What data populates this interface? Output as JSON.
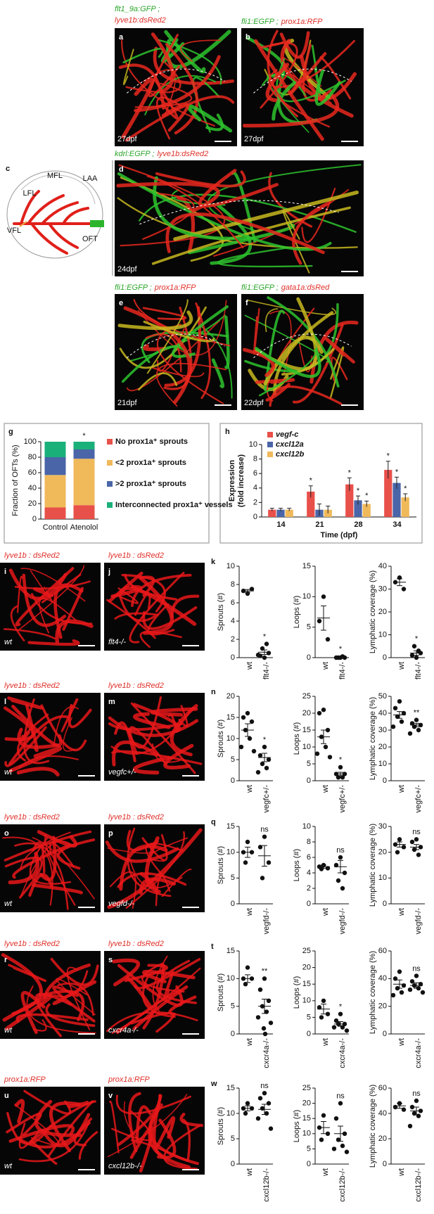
{
  "panels": [
    {
      "letter": "a",
      "label_green": "flt1_9a:GFP ;",
      "label_red": "lyve1b:dsRed2",
      "stage": "27dpf"
    },
    {
      "letter": "b",
      "label_green": "fli1:EGFP ;",
      "label_red": "prox1a:RFP",
      "stage": "27dpf"
    },
    {
      "letter": "c",
      "labels": [
        "MFL",
        "LAA",
        "LFL",
        "VFL",
        "OFT"
      ]
    },
    {
      "letter": "d",
      "label_green": "kdrl:EGFP ;",
      "label_red": "lyve1b:dsRed2",
      "stage": "24dpf"
    },
    {
      "letter": "e",
      "label_green": "fli1:EGFP ;",
      "label_red": "prox1a:RFP",
      "stage": "21dpf"
    },
    {
      "letter": "f",
      "label_green": "fli1:EGFP ;",
      "label_red": "gata1a:dsRed",
      "stage": "22dpf"
    },
    {
      "letter": "i",
      "label_red": "lyve1b : dsRed2",
      "genotype": "wt"
    },
    {
      "letter": "j",
      "label_red": "lyve1b : dsRed2",
      "genotype": "flt4-/-"
    },
    {
      "letter": "l",
      "label_red": "lyve1b : dsRed2",
      "genotype": "wt"
    },
    {
      "letter": "m",
      "label_red": "lyve1b : dsRed2",
      "genotype": "vegfc+/-"
    },
    {
      "letter": "o",
      "label_red": "lyve1b : dsRed2",
      "genotype": "wt"
    },
    {
      "letter": "p",
      "label_red": "lyve1b : dsRed2",
      "genotype": "vegfd-/-"
    },
    {
      "letter": "r",
      "label_red": "lyve1b : dsRed2",
      "genotype": "wt"
    },
    {
      "letter": "s",
      "label_red": "lyve1b : dsRed2",
      "genotype": "cxcr4a-/-"
    },
    {
      "letter": "u",
      "label_red": "prox1a:RFP",
      "genotype": "wt"
    },
    {
      "letter": "v",
      "label_red": "prox1a:RFP",
      "genotype": "cxcl12b-/-"
    }
  ],
  "chart_data": [
    {
      "type": "stacked",
      "panel": "g",
      "ylabel": "Fraction of OFTs (%)",
      "categories": [
        "Control",
        "Atenolol"
      ],
      "ylim": [
        0,
        100
      ],
      "yticks": [
        0,
        20,
        40,
        60,
        80,
        100
      ],
      "annotation": "*",
      "series": [
        {
          "name": "No prox1a⁺ sprouts",
          "color": "#e8504a",
          "values": [
            15,
            18
          ]
        },
        {
          "name": "<2 prox1a⁺ sprouts",
          "color": "#f0b95a",
          "values": [
            42,
            60
          ]
        },
        {
          "name": ">2 prox1a⁺ sprouts",
          "color": "#4a65a8",
          "values": [
            23,
            12
          ]
        },
        {
          "name": "Interconnected prox1a⁺ vessels",
          "color": "#1ab07a",
          "values": [
            20,
            10
          ]
        }
      ]
    },
    {
      "type": "grouped",
      "panel": "h",
      "ylabel": [
        "Expression",
        "(fold increase)"
      ],
      "xlabel": "Time (dpf)",
      "categories": [
        "14",
        "21",
        "28",
        "34"
      ],
      "ylim": [
        0,
        10
      ],
      "yticks": [
        0,
        2,
        4,
        6,
        8,
        10
      ],
      "series": [
        {
          "name": "vegf-c",
          "color": "#e8504a",
          "values": [
            1,
            3.5,
            4.5,
            6.5
          ],
          "errors": [
            0.2,
            0.8,
            0.9,
            1.2
          ],
          "annotations": [
            null,
            "*",
            "*",
            "*"
          ]
        },
        {
          "name": "cxcl12a",
          "color": "#4a65a8",
          "values": [
            1,
            1,
            2.3,
            4.7
          ],
          "errors": [
            0.2,
            0.8,
            0.6,
            0.8
          ],
          "annotations": [
            null,
            null,
            "*",
            "*"
          ]
        },
        {
          "name": "cxcl12b",
          "color": "#f0b95a",
          "values": [
            1,
            1,
            1.8,
            2.7
          ],
          "errors": [
            0.2,
            0.5,
            0.4,
            0.5
          ],
          "annotations": [
            null,
            null,
            "*",
            "*"
          ]
        }
      ]
    },
    {
      "type": "dot",
      "panel": "k",
      "ylabel": "Sprouts (#)",
      "ylim": [
        0,
        10
      ],
      "yticks": [
        0,
        2,
        4,
        6,
        8,
        10
      ],
      "categories": [
        "wt",
        "flt4-/-"
      ],
      "points": [
        [
          7,
          7.3,
          7.5
        ],
        [
          0,
          0.2,
          0.5,
          1,
          1.5,
          0.3
        ]
      ],
      "means": [
        7.3,
        0.6
      ],
      "sems": [
        0.15,
        0.25
      ],
      "annotation": "*"
    },
    {
      "type": "dot",
      "ylabel": "Loops (#)",
      "ylim": [
        0,
        15
      ],
      "yticks": [
        0,
        5,
        10,
        15
      ],
      "categories": [
        "wt",
        "flt4-/-"
      ],
      "points": [
        [
          10,
          6,
          3
        ],
        [
          0,
          0,
          0,
          0,
          0.2
        ]
      ],
      "means": [
        6.5,
        0.05
      ],
      "sems": [
        2,
        0.05
      ],
      "annotation": "*"
    },
    {
      "type": "dot",
      "ylabel": "Lymphatic coverage (%)",
      "ylim": [
        0,
        40
      ],
      "yticks": [
        0,
        10,
        20,
        30,
        40
      ],
      "categories": [
        "wt",
        "flt4-/-"
      ],
      "points": [
        [
          35,
          33,
          30
        ],
        [
          0,
          1,
          2,
          5,
          3
        ]
      ],
      "means": [
        33,
        2
      ],
      "sems": [
        1.5,
        1
      ],
      "annotation": "*"
    },
    {
      "type": "dot",
      "panel": "n",
      "ylabel": "Sprouts (#)",
      "ylim": [
        0,
        20
      ],
      "yticks": [
        0,
        5,
        10,
        15,
        20
      ],
      "categories": [
        "wt",
        "vegfc+/-"
      ],
      "points": [
        [
          16,
          15,
          14,
          12,
          10,
          8,
          7
        ],
        [
          8,
          6,
          5,
          4,
          3,
          2
        ]
      ],
      "means": [
        12,
        5.5
      ],
      "sems": [
        1.5,
        1
      ],
      "annotation": "*"
    },
    {
      "type": "dot",
      "ylabel": "Loops (#)",
      "ylim": [
        0,
        25
      ],
      "yticks": [
        0,
        5,
        10,
        15,
        20,
        25
      ],
      "categories": [
        "wt",
        "vegfc+/-"
      ],
      "points": [
        [
          21,
          20,
          15,
          13,
          10,
          8,
          7
        ],
        [
          4,
          2,
          2,
          1,
          1
        ]
      ],
      "means": [
        13,
        2
      ],
      "sems": [
        2,
        0.5
      ],
      "annotation": "*"
    },
    {
      "type": "dot",
      "ylabel": "Lymphatic coverage (%)",
      "ylim": [
        0,
        50
      ],
      "yticks": [
        0,
        10,
        20,
        30,
        40,
        50
      ],
      "categories": [
        "wt",
        "vegfc+/-"
      ],
      "points": [
        [
          47,
          43,
          40,
          38,
          35,
          32
        ],
        [
          36,
          34,
          33,
          32,
          30,
          28
        ]
      ],
      "means": [
        39,
        33
      ],
      "sems": [
        2,
        1
      ],
      "annotation": "**"
    },
    {
      "type": "dot",
      "panel": "q",
      "ylabel": "Sprouts (#)",
      "ylim": [
        0,
        15
      ],
      "yticks": [
        0,
        5,
        10,
        15
      ],
      "categories": [
        "wt",
        "vegfd-/-"
      ],
      "points": [
        [
          12,
          10,
          10,
          8
        ],
        [
          13,
          11,
          8,
          5
        ]
      ],
      "means": [
        10,
        9.3
      ],
      "sems": [
        1,
        2
      ],
      "annotation": "ns"
    },
    {
      "type": "dot",
      "ylabel": "Loops (#)",
      "ylim": [
        0,
        10
      ],
      "yticks": [
        0,
        2,
        4,
        6,
        8,
        10
      ],
      "categories": [
        "wt",
        "vegfd-/-"
      ],
      "points": [
        [
          5,
          4.8,
          4.6,
          4.5
        ],
        [
          6,
          5,
          4,
          3,
          2
        ]
      ],
      "means": [
        4.8,
        4.8
      ],
      "sems": [
        0.2,
        0.8
      ],
      "annotation": "ns"
    },
    {
      "type": "dot",
      "ylabel": "Lymphatic coverage (%)",
      "ylim": [
        0,
        30
      ],
      "yticks": [
        0,
        10,
        20,
        30
      ],
      "categories": [
        "wt",
        "vegfd-/-"
      ],
      "points": [
        [
          25,
          23,
          22,
          20
        ],
        [
          25,
          24,
          22,
          21,
          19
        ]
      ],
      "means": [
        23,
        22
      ],
      "sems": [
        1,
        1
      ],
      "annotation": "ns"
    },
    {
      "type": "dot",
      "panel": "t",
      "ylabel": "Sprouts (#)",
      "ylim": [
        0,
        15
      ],
      "yticks": [
        0,
        5,
        10,
        15
      ],
      "categories": [
        "wt",
        "cxcr4a-/-"
      ],
      "points": [
        [
          12,
          10,
          10,
          9
        ],
        [
          10,
          8,
          6,
          5,
          4,
          3,
          2,
          1,
          0
        ]
      ],
      "means": [
        10,
        5
      ],
      "sems": [
        0.7,
        1.3
      ],
      "annotation": "**"
    },
    {
      "type": "dot",
      "ylabel": "Loops (#)",
      "ylim": [
        0,
        25
      ],
      "yticks": [
        0,
        5,
        10,
        15,
        20,
        25
      ],
      "categories": [
        "wt",
        "cxcr4a-/-"
      ],
      "points": [
        [
          10,
          8,
          6,
          5
        ],
        [
          6,
          4,
          3,
          3,
          2,
          2,
          1
        ]
      ],
      "means": [
        7.5,
        3
      ],
      "sems": [
        1.5,
        0.7
      ],
      "annotation": "*"
    },
    {
      "type": "dot",
      "ylabel": "Lymphatic coverage (%)",
      "ylim": [
        0,
        60
      ],
      "yticks": [
        0,
        20,
        40,
        60
      ],
      "categories": [
        "wt",
        "cxcr4a-/-"
      ],
      "points": [
        [
          45,
          40,
          35,
          33,
          30,
          28
        ],
        [
          42,
          38,
          36,
          35,
          33,
          32,
          30
        ]
      ],
      "means": [
        36,
        35
      ],
      "sems": [
        3,
        2
      ],
      "annotation": "ns"
    },
    {
      "type": "dot",
      "panel": "w",
      "ylabel": "Sprouts (#)",
      "ylim": [
        0,
        15
      ],
      "yticks": [
        0,
        5,
        10,
        15
      ],
      "categories": [
        "wt",
        "cxcl12b-/-"
      ],
      "points": [
        [
          12,
          11,
          11,
          10
        ],
        [
          14,
          13,
          12,
          11,
          10,
          9,
          7
        ]
      ],
      "means": [
        11,
        10.8
      ],
      "sems": [
        0.5,
        1
      ],
      "annotation": "ns"
    },
    {
      "type": "dot",
      "ylabel": "Loops (#)",
      "ylim": [
        0,
        25
      ],
      "yticks": [
        0,
        5,
        10,
        15,
        20,
        25
      ],
      "categories": [
        "wt",
        "cxcl12b-/-"
      ],
      "points": [
        [
          16,
          12,
          10,
          8
        ],
        [
          20,
          15,
          10,
          8,
          6,
          5,
          4
        ]
      ],
      "means": [
        12,
        10
      ],
      "sems": [
        2,
        2.5
      ],
      "annotation": "ns"
    },
    {
      "type": "dot",
      "ylabel": "Lymphatic coverage (%)",
      "ylim": [
        0,
        60
      ],
      "yticks": [
        0,
        20,
        40,
        60
      ],
      "categories": [
        "wt",
        "cxcl12b-/-"
      ],
      "points": [
        [
          48,
          45,
          43
        ],
        [
          50,
          45,
          42,
          40,
          38,
          30
        ]
      ],
      "means": [
        46,
        42
      ],
      "sems": [
        2,
        3
      ],
      "annotation": "ns"
    }
  ]
}
